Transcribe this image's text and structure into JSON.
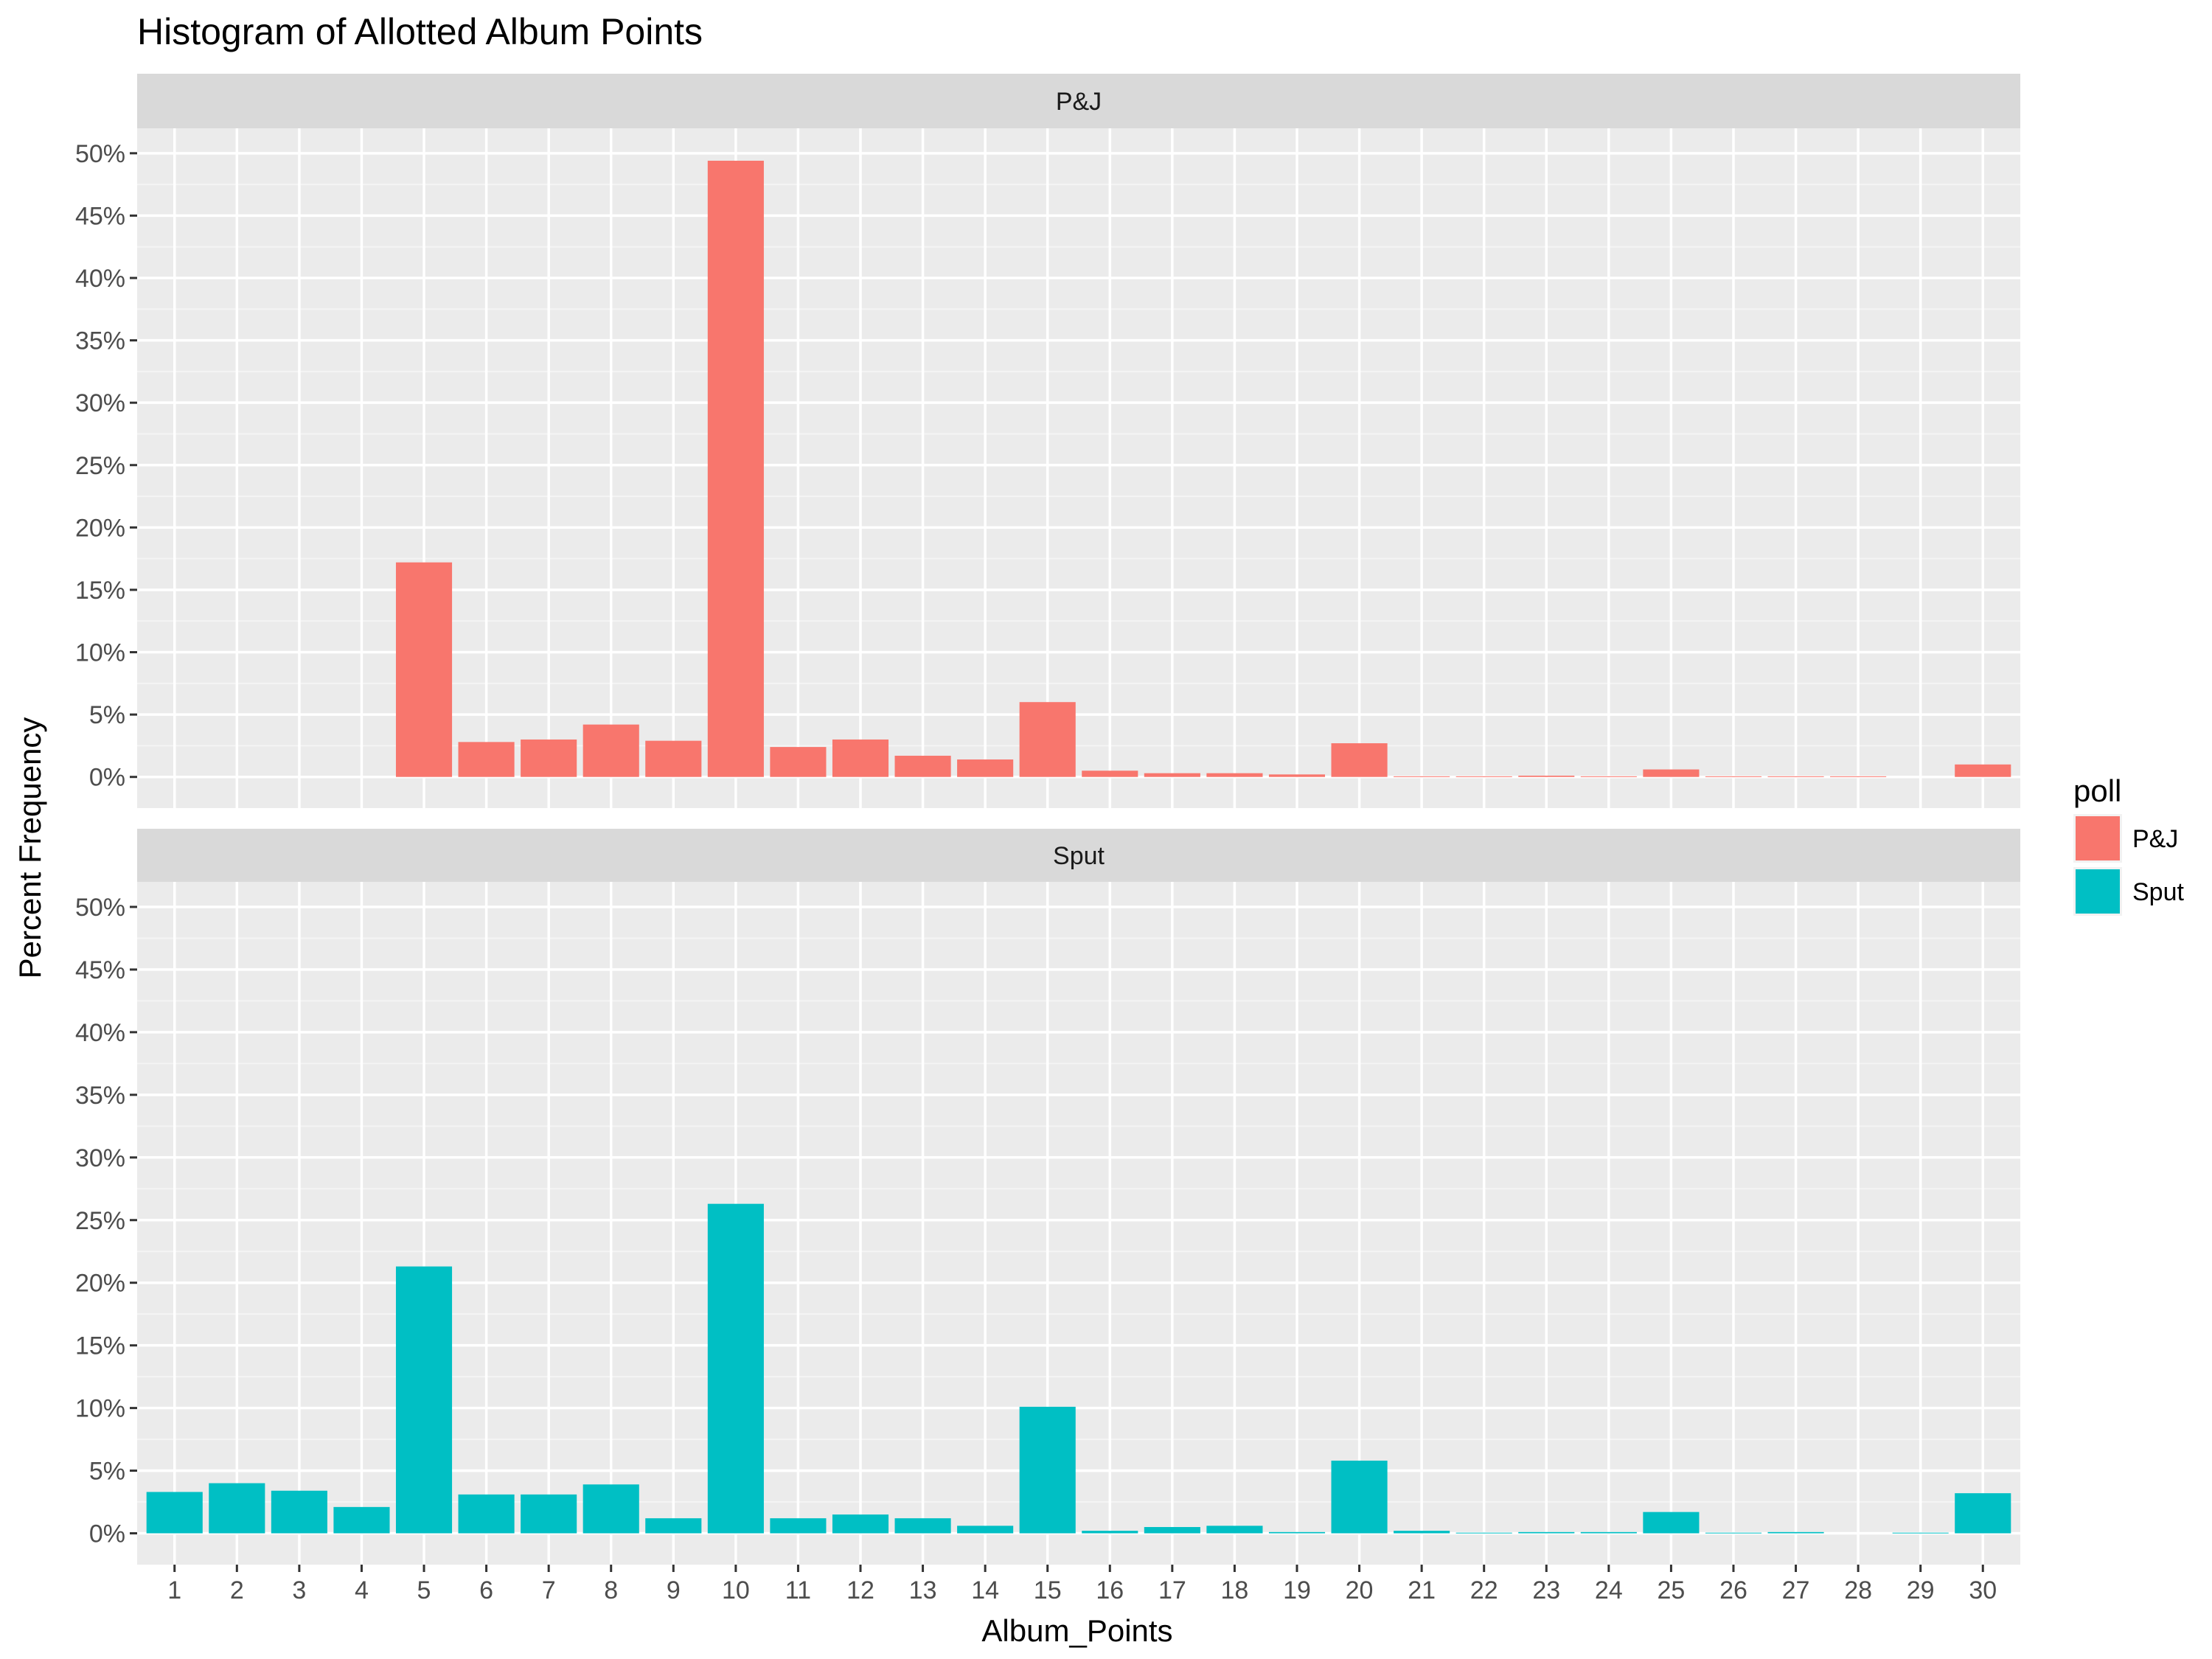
{
  "chart_data": {
    "type": "bar",
    "title": "Histogram of Allotted Album Points",
    "xlabel": "Album_Points",
    "ylabel": "Percent Frequency",
    "categories": [
      "1",
      "2",
      "3",
      "4",
      "5",
      "6",
      "7",
      "8",
      "9",
      "10",
      "11",
      "12",
      "13",
      "14",
      "15",
      "16",
      "17",
      "18",
      "19",
      "20",
      "21",
      "22",
      "23",
      "24",
      "25",
      "26",
      "27",
      "28",
      "29",
      "30"
    ],
    "y_ticks": [
      "0%",
      "5%",
      "10%",
      "15%",
      "20%",
      "25%",
      "30%",
      "35%",
      "40%",
      "45%",
      "50%"
    ],
    "ylim": [
      -2.5,
      52
    ],
    "legend": {
      "title": "poll",
      "position": "right"
    },
    "panels": [
      {
        "strip": "P&J",
        "color": "#F8766D",
        "values": [
          0,
          0,
          0,
          0,
          17.2,
          2.8,
          3.0,
          4.2,
          2.9,
          49.4,
          2.4,
          3.0,
          1.7,
          1.4,
          6.0,
          0.5,
          0.3,
          0.3,
          0.2,
          2.7,
          0.05,
          0.05,
          0.1,
          0.05,
          0.6,
          0.05,
          0.05,
          0.05,
          0,
          1.0
        ]
      },
      {
        "strip": "Sput",
        "color": "#00BFC4",
        "values": [
          3.3,
          4.0,
          3.4,
          2.1,
          21.3,
          3.1,
          3.1,
          3.9,
          1.2,
          26.3,
          1.2,
          1.5,
          1.2,
          0.6,
          10.1,
          0.2,
          0.5,
          0.6,
          0.1,
          5.8,
          0.2,
          0.05,
          0.1,
          0.1,
          1.7,
          0.05,
          0.1,
          0,
          0.05,
          3.2
        ]
      }
    ]
  }
}
